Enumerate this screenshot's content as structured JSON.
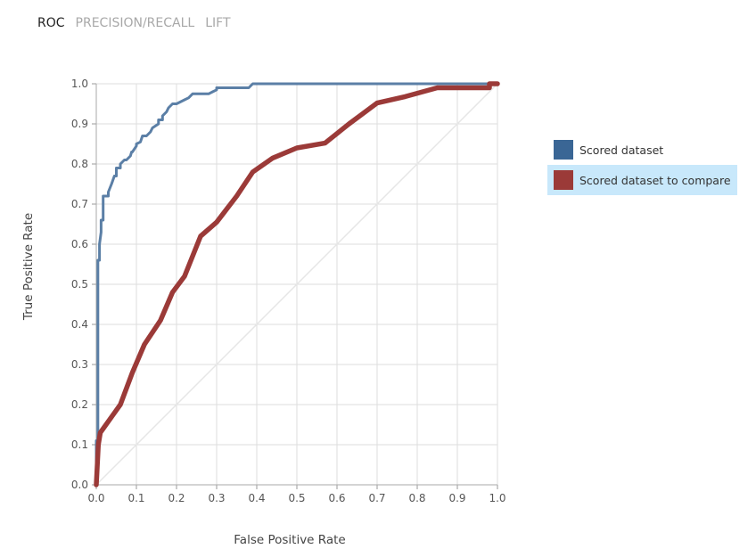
{
  "tabs": [
    {
      "label": "ROC",
      "active": true
    },
    {
      "label": "PRECISION/RECALL",
      "active": false
    },
    {
      "label": "LIFT",
      "active": false
    }
  ],
  "chart_data": {
    "type": "line",
    "title": "",
    "xlabel": "False Positive Rate",
    "ylabel": "True Positive Rate",
    "xlim": [
      0,
      1
    ],
    "ylim": [
      0,
      1
    ],
    "x_ticks": [
      "0.0",
      "0.1",
      "0.2",
      "0.3",
      "0.4",
      "0.5",
      "0.6",
      "0.7",
      "0.8",
      "0.9",
      "1.0"
    ],
    "y_ticks": [
      "0.0",
      "0.1",
      "0.2",
      "0.3",
      "0.4",
      "0.5",
      "0.6",
      "0.7",
      "0.8",
      "0.9",
      "1.0"
    ],
    "grid": true,
    "legend_position": "right",
    "diagonal_reference": true,
    "series": [
      {
        "name": "Scored dataset",
        "color": "#5b7fa6",
        "swatch_color": "#3a6695",
        "x": [
          0,
          0,
          0.004,
          0.004,
          0.008,
          0.008,
          0.012,
          0.012,
          0.017,
          0.017,
          0.022,
          0.022,
          0.03,
          0.03,
          0.038,
          0.045,
          0.05,
          0.05,
          0.06,
          0.06,
          0.07,
          0.075,
          0.085,
          0.088,
          0.09,
          0.1,
          0.1,
          0.11,
          0.115,
          0.125,
          0.135,
          0.14,
          0.155,
          0.155,
          0.165,
          0.165,
          0.175,
          0.175,
          0.18,
          0.19,
          0.2,
          0.22,
          0.22,
          0.23,
          0.24,
          0.25,
          0.26,
          0.28,
          0.29,
          0.3,
          0.3,
          0.38,
          0.39,
          0.4,
          0.5,
          0.6,
          0.7,
          0.8,
          0.9,
          1.0
        ],
        "y": [
          0,
          0.11,
          0.11,
          0.56,
          0.56,
          0.6,
          0.63,
          0.66,
          0.66,
          0.72,
          0.72,
          0.72,
          0.72,
          0.73,
          0.75,
          0.77,
          0.77,
          0.79,
          0.79,
          0.8,
          0.81,
          0.81,
          0.82,
          0.83,
          0.83,
          0.845,
          0.85,
          0.855,
          0.87,
          0.87,
          0.88,
          0.89,
          0.9,
          0.91,
          0.91,
          0.92,
          0.93,
          0.93,
          0.94,
          0.95,
          0.95,
          0.96,
          0.96,
          0.965,
          0.975,
          0.975,
          0.975,
          0.975,
          0.98,
          0.985,
          0.99,
          0.99,
          1.0,
          1.0,
          1.0,
          1.0,
          1.0,
          1.0,
          1.0,
          1.0
        ]
      },
      {
        "name": "Scored dataset to compare",
        "color": "#9b3a38",
        "swatch_color": "#9b3a38",
        "x": [
          0,
          0.005,
          0.01,
          0.06,
          0.09,
          0.12,
          0.16,
          0.19,
          0.22,
          0.26,
          0.3,
          0.35,
          0.39,
          0.44,
          0.5,
          0.57,
          0.63,
          0.7,
          0.77,
          0.85,
          0.98,
          0.98,
          1.0
        ],
        "y": [
          0,
          0.1,
          0.13,
          0.2,
          0.28,
          0.35,
          0.41,
          0.48,
          0.52,
          0.62,
          0.655,
          0.72,
          0.78,
          0.815,
          0.84,
          0.852,
          0.9,
          0.952,
          0.968,
          0.99,
          0.99,
          1.0,
          1.0
        ]
      }
    ]
  }
}
